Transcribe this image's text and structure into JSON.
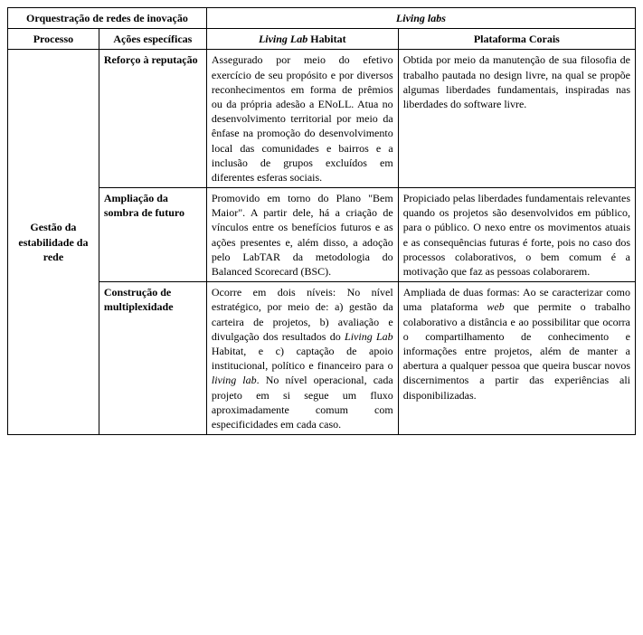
{
  "headers": {
    "orq": "Orquestração de redes de inovação",
    "liv": "Living labs",
    "proc": "Processo",
    "acoes": "Ações específicas",
    "liv_habitat_pre": "Living Lab",
    "liv_habitat_post": " Habitat",
    "plataforma": "Plataforma Corais"
  },
  "process": {
    "label": "Gestão da estabilidade da rede"
  },
  "rows": [
    {
      "acao": "Reforço à reputação",
      "habitat": "Assegurado por meio do efetivo exercício de seu propósito e por diversos reconhecimentos em forma de prêmios ou da própria adesão a ENoLL. Atua no desenvolvimento territorial por meio da ênfase na promoção do desenvolvimento local das comunidades e bairros e a inclusão de grupos excluídos em diferentes esferas sociais.",
      "corais": "Obtida por meio da manutenção de sua filosofia de trabalho pautada no design livre, na qual se propõe algumas liberdades fundamentais, inspiradas nas liberdades do software livre."
    },
    {
      "acao": "Ampliação da sombra de futuro",
      "habitat": "Promovido em torno do Plano \"Bem Maior\". A partir dele, há a criação de vínculos entre os benefícios futuros e as ações presentes e, além disso, a adoção pelo LabTAR da metodologia do Balanced Scorecard (BSC).",
      "corais": "Propiciado pelas liberdades fundamentais relevantes quando os projetos são desenvolvidos em público, para o público. O nexo entre os movimentos atuais e as consequências futuras é forte, pois no caso dos processos colaborativos, o bem comum é a motivação que faz as pessoas colaborarem."
    },
    {
      "acao": "Construção de multiplexidade",
      "habitat_parts": {
        "p1": "Ocorre em dois níveis: No nível estratégico, por meio de: a) gestão da carteira de projetos, b) avaliação e divulgação dos resultados do ",
        "p2_it": "Living Lab",
        "p3": " Habitat, e c) captação de apoio institucional, político e financeiro para o ",
        "p4_it": "living lab",
        "p5": ". No nível operacional, cada projeto em si segue um fluxo aproximadamente comum com especificidades em cada caso."
      },
      "corais_parts": {
        "p1": "Ampliada de duas formas: Ao se caracterizar como uma plataforma ",
        "p2_it": "web",
        "p3": " que permite o trabalho colaborativo a distância e ao possibilitar que ocorra o compartilhamento de conhecimento e informações entre projetos, além de manter a abertura a qualquer pessoa que queira buscar novos discernimentos a partir das experiências ali disponibilizadas."
      }
    }
  ]
}
